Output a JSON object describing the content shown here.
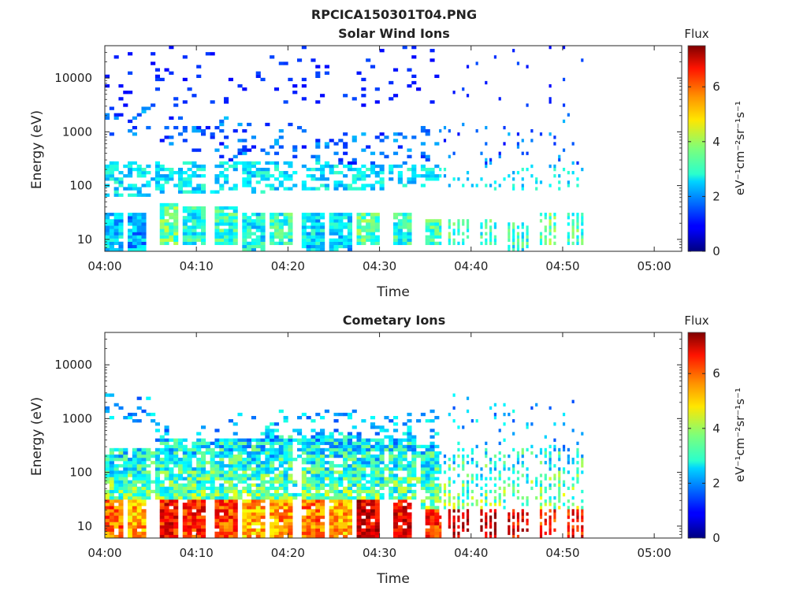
{
  "figure_title": "RPCICA150301T04.PNG",
  "colorbar": {
    "title": "Flux",
    "label": "eV⁻¹cm⁻²sr⁻¹s⁻¹",
    "ticks": [
      "0",
      "2",
      "4",
      "6"
    ],
    "range": [
      0,
      7.5
    ],
    "colormap": "jet"
  },
  "chart_data": [
    {
      "type": "heatmap",
      "title": "Solar Wind Ions",
      "xlabel": "Time",
      "ylabel": "Energy (eV)",
      "x_ticks": [
        "04:00",
        "04:10",
        "04:20",
        "04:30",
        "04:40",
        "04:50",
        "05:00"
      ],
      "x_tick_minutes": [
        0,
        10,
        20,
        30,
        40,
        50,
        60
      ],
      "xlim_minutes": [
        0,
        63
      ],
      "y_scale": "log",
      "y_ticks": [
        "10",
        "100",
        "1000",
        "10000"
      ],
      "y_tick_values": [
        10,
        100,
        1000,
        10000
      ],
      "ylim": [
        6,
        40000
      ],
      "data_extent_minutes": [
        0,
        52.5
      ],
      "sweeps": [
        {
          "t": 0.4,
          "low": [
            6,
            30
          ],
          "mid": [
            60,
            300
          ],
          "high": [
            800,
            3000
          ],
          "v": 2.4
        },
        {
          "t": 3.3,
          "low": [
            6,
            30
          ],
          "mid": [
            60,
            300
          ],
          "high": [
            800,
            3000
          ],
          "v": 2.2
        },
        {
          "t": 6.8,
          "low": [
            8,
            50
          ],
          "mid": [
            70,
            300
          ],
          "high": [
            600,
            2000
          ],
          "v": 3.6
        },
        {
          "t": 9.6,
          "low": [
            8,
            40
          ],
          "mid": [
            70,
            300
          ],
          "high": [
            400,
            2000
          ],
          "v": 3.0
        },
        {
          "t": 12.9,
          "low": [
            8,
            40
          ],
          "mid": [
            70,
            300
          ],
          "high": [
            300,
            2000
          ],
          "v": 3.2
        },
        {
          "t": 16.0,
          "low": [
            6,
            30
          ],
          "mid": [
            70,
            300
          ],
          "high": [
            200,
            1500
          ],
          "v": 2.8
        },
        {
          "t": 18.8,
          "low": [
            8,
            30
          ],
          "mid": [
            80,
            300
          ],
          "high": [
            200,
            1500
          ],
          "v": 3.1
        },
        {
          "t": 22.7,
          "low": [
            6,
            30
          ],
          "mid": [
            80,
            300
          ],
          "high": [
            200,
            1500
          ],
          "v": 2.6
        },
        {
          "t": 25.7,
          "low": [
            6,
            30
          ],
          "mid": [
            80,
            250
          ],
          "high": [
            200,
            1200
          ],
          "v": 2.5
        },
        {
          "t": 28.6,
          "low": [
            8,
            30
          ],
          "mid": [
            80,
            250
          ],
          "high": [
            150,
            1000
          ],
          "v": 3.4
        },
        {
          "t": 32.2,
          "low": [
            8,
            30
          ],
          "mid": [
            90,
            250
          ],
          "high": [
            200,
            1000
          ],
          "v": 3.1
        },
        {
          "t": 35.8,
          "low": [
            8,
            25
          ],
          "mid": [
            90,
            250
          ],
          "high": [
            300,
            1200
          ],
          "v": 3.3
        },
        {
          "t": 38.5,
          "low": [
            8,
            25
          ],
          "mid": [
            80,
            250
          ],
          "high": [
            200,
            1500
          ],
          "v": 3.4
        },
        {
          "t": 41.7,
          "low": [
            8,
            25
          ],
          "mid": [
            80,
            250
          ],
          "high": [
            200,
            1500
          ],
          "v": 3.2
        },
        {
          "t": 44.9,
          "low": [
            6,
            20
          ],
          "mid": [
            80,
            250
          ],
          "high": [
            200,
            1500
          ],
          "v": 3.0
        },
        {
          "t": 48.2,
          "low": [
            8,
            30
          ],
          "mid": [
            80,
            250
          ],
          "high": [
            200,
            1500
          ],
          "v": 3.5
        },
        {
          "t": 51.3,
          "low": [
            8,
            30
          ],
          "mid": [
            90,
            250
          ],
          "high": [
            200,
            3000
          ],
          "v": 3.3
        }
      ]
    },
    {
      "type": "heatmap",
      "title": "Cometary Ions",
      "xlabel": "Time",
      "ylabel": "Energy (eV)",
      "x_ticks": [
        "04:00",
        "04:10",
        "04:20",
        "04:30",
        "04:40",
        "04:50",
        "05:00"
      ],
      "x_tick_minutes": [
        0,
        10,
        20,
        30,
        40,
        50,
        60
      ],
      "xlim_minutes": [
        0,
        63
      ],
      "y_scale": "log",
      "y_ticks": [
        "10",
        "100",
        "1000",
        "10000"
      ],
      "y_tick_values": [
        10,
        100,
        1000,
        10000
      ],
      "ylim": [
        6,
        40000
      ],
      "data_extent_minutes": [
        0,
        52.5
      ],
      "sweeps": [
        {
          "t": 0.4,
          "low": [
            6,
            30
          ],
          "mid": [
            30,
            300
          ],
          "high": [
            1000,
            3000
          ],
          "v": 5.5
        },
        {
          "t": 3.3,
          "low": [
            6,
            30
          ],
          "mid": [
            30,
            300
          ],
          "high": [
            800,
            2500
          ],
          "v": 5.0
        },
        {
          "t": 6.8,
          "low": [
            6,
            30
          ],
          "mid": [
            30,
            400
          ],
          "high": [
            400,
            800
          ],
          "v": 6.2
        },
        {
          "t": 9.6,
          "low": [
            6,
            30
          ],
          "mid": [
            30,
            400
          ],
          "high": [
            500,
            900
          ],
          "v": 6.0
        },
        {
          "t": 12.9,
          "low": [
            6,
            30
          ],
          "mid": [
            30,
            400
          ],
          "high": [
            500,
            1000
          ],
          "v": 5.8
        },
        {
          "t": 16.0,
          "low": [
            6,
            30
          ],
          "mid": [
            30,
            400
          ],
          "high": [
            500,
            1200
          ],
          "v": 5.0
        },
        {
          "t": 18.8,
          "low": [
            6,
            30
          ],
          "mid": [
            30,
            500
          ],
          "high": [
            500,
            1500
          ],
          "v": 5.2
        },
        {
          "t": 22.7,
          "low": [
            6,
            30
          ],
          "mid": [
            30,
            500
          ],
          "high": [
            500,
            1500
          ],
          "v": 5.4
        },
        {
          "t": 25.7,
          "low": [
            6,
            30
          ],
          "mid": [
            30,
            500
          ],
          "high": [
            500,
            1500
          ],
          "v": 5.0
        },
        {
          "t": 28.6,
          "low": [
            6,
            30
          ],
          "mid": [
            30,
            400
          ],
          "high": [
            400,
            1200
          ],
          "v": 6.5
        },
        {
          "t": 32.2,
          "low": [
            6,
            30
          ],
          "mid": [
            30,
            400
          ],
          "high": [
            400,
            1200
          ],
          "v": 6.3
        },
        {
          "t": 35.8,
          "low": [
            6,
            20
          ],
          "mid": [
            20,
            300
          ],
          "high": [
            300,
            1500
          ],
          "v": 6.0
        },
        {
          "t": 38.5,
          "low": [
            6,
            20
          ],
          "mid": [
            20,
            300
          ],
          "high": [
            300,
            3000
          ],
          "v": 6.8
        },
        {
          "t": 41.7,
          "low": [
            6,
            20
          ],
          "mid": [
            20,
            300
          ],
          "high": [
            300,
            2000
          ],
          "v": 6.6
        },
        {
          "t": 44.9,
          "low": [
            6,
            20
          ],
          "mid": [
            20,
            300
          ],
          "high": [
            300,
            2000
          ],
          "v": 6.3
        },
        {
          "t": 48.2,
          "low": [
            6,
            20
          ],
          "mid": [
            20,
            300
          ],
          "high": [
            300,
            2000
          ],
          "v": 6.0
        },
        {
          "t": 51.3,
          "low": [
            6,
            20
          ],
          "mid": [
            20,
            300
          ],
          "high": [
            300,
            4000
          ],
          "v": 6.2
        }
      ]
    }
  ]
}
